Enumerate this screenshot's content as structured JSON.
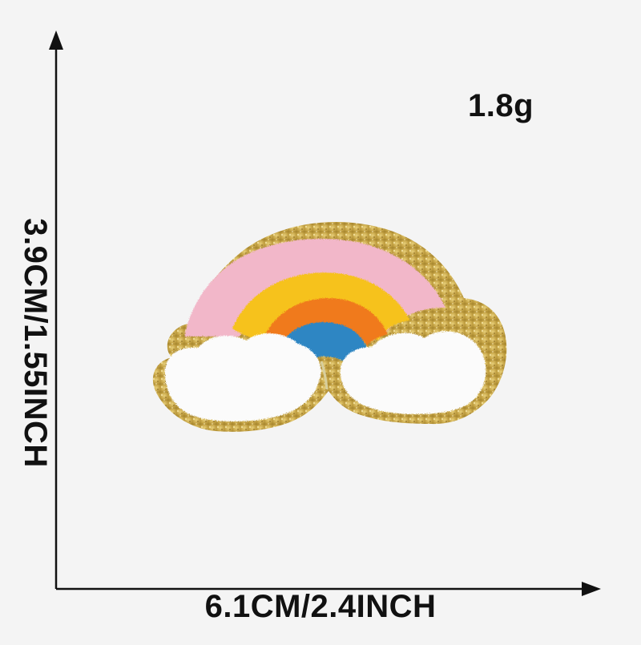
{
  "image": {
    "subject": "chenille rainbow patch",
    "weight": "1.8g",
    "width_text": "6.1CM/2.4INCH",
    "height_text": "3.9CM/1.55INCH"
  },
  "colors": {
    "background": "#f4f4f4",
    "axis": "#111111",
    "glitter_border": "#c9a84a",
    "pink_arc": "#f2b7c9",
    "yellow_arc": "#f6c21a",
    "orange_arc": "#f07a1c",
    "blue_arc": "#2f86c3",
    "cloud_white": "#fbfbfb"
  },
  "icons": {
    "up_arrow": "arrow-up-icon",
    "right_arrow": "arrow-right-icon"
  }
}
